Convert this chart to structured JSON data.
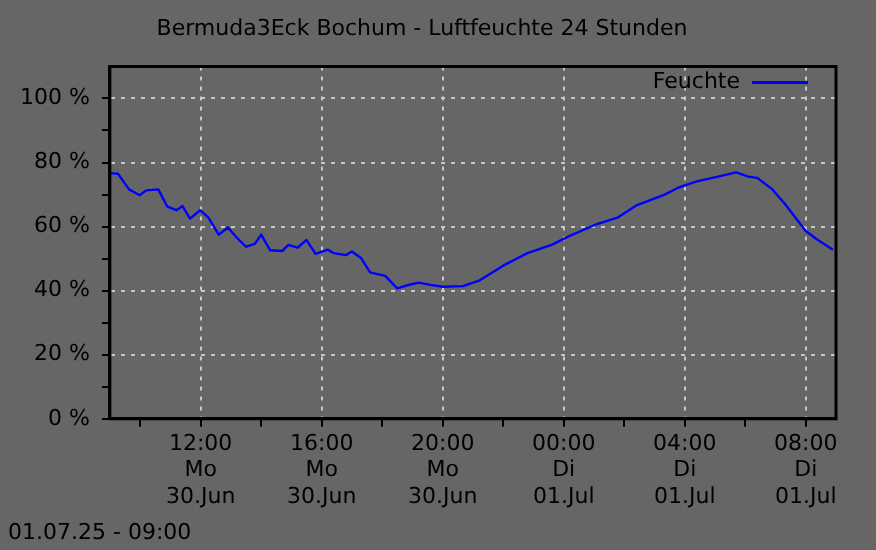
{
  "chart_data": {
    "type": "line",
    "title": "Bermuda3Eck Bochum - Luftfeuchte 24 Stunden",
    "annotations": [
      "01.07.25 - 09:00"
    ],
    "x": [
      "--06-30T09:00",
      "--06-30T09:16",
      "--06-30T09:38",
      "--06-30T09:59",
      "--06-30T10:12",
      "--06-30T10:36",
      "--06-30T10:54",
      "--06-30T11:12",
      "--06-30T11:24",
      "--06-30T11:39",
      "--06-30T11:59",
      "--06-30T12:15",
      "--06-30T12:36",
      "--06-30T12:54",
      "--06-30T13:12",
      "--06-30T13:30",
      "--06-30T13:48",
      "--06-30T14:00",
      "--06-30T14:18",
      "--06-30T14:42",
      "--06-30T14:54",
      "--06-30T15:12",
      "--06-30T15:30",
      "--06-30T15:48",
      "--06-30T16:12",
      "--06-30T16:24",
      "--06-30T16:48",
      "--06-30T17:00",
      "--06-30T17:18",
      "--06-30T17:36",
      "--06-30T18:06",
      "--06-30T18:30",
      "--06-30T18:48",
      "--06-30T19:12",
      "--06-30T19:36",
      "--06-30T20:00",
      "--06-30T20:40",
      "--06-30T21:12",
      "--06-30T22:00",
      "--06-30T22:48",
      "--06-30T23:36",
      "--07-01T00:12",
      "--07-01T01:06",
      "--07-01T01:48",
      "--07-01T02:24",
      "--07-01T03:18",
      "--07-01T03:48",
      "--07-01T04:24",
      "--07-01T05:06",
      "--07-01T05:42",
      "--07-01T06:06",
      "--07-01T06:24",
      "--07-01T06:54",
      "--07-01T07:18",
      "--07-01T08:00",
      "--07-01T08:24",
      "--07-01T08:54"
    ],
    "series": [
      {
        "name": "Feuchte",
        "color": "#0000ff",
        "values": [
          76.7,
          76.5,
          71.6,
          69.8,
          71.3,
          71.6,
          66.2,
          65.1,
          66.4,
          62.5,
          65.1,
          62.9,
          57.5,
          59.7,
          56.5,
          53.7,
          54.7,
          57.5,
          52.6,
          52.4,
          54.3,
          53.4,
          55.8,
          51.5,
          52.8,
          51.7,
          51.1,
          52.2,
          50.2,
          45.7,
          44.6,
          40.7,
          41.6,
          42.5,
          41.8,
          41.2,
          41.4,
          43.1,
          47.8,
          51.7,
          54.3,
          57.1,
          60.8,
          62.9,
          66.6,
          69.8,
          72.2,
          74.1,
          75.6,
          76.9,
          75.6,
          75.2,
          71.6,
          67.2,
          58.6,
          55.8,
          52.8
        ]
      }
    ],
    "xlim": [
      "--06-30T09:00",
      "--07-01T09:00"
    ],
    "xticks": [
      {
        "value": "--06-30T10:00",
        "label": null
      },
      {
        "value": "--06-30T12:00",
        "label": "12:00\nMo\n30.Jun"
      },
      {
        "value": "--06-30T14:00",
        "label": null
      },
      {
        "value": "--06-30T16:00",
        "label": "16:00\nMo\n30.Jun"
      },
      {
        "value": "--06-30T18:00",
        "label": null
      },
      {
        "value": "--06-30T20:00",
        "label": "20:00\nMo\n30.Jun"
      },
      {
        "value": "--06-30T22:00",
        "label": null
      },
      {
        "value": "--07-01T00:00",
        "label": "00:00\nDi\n01.Jul"
      },
      {
        "value": "--07-01T02:00",
        "label": null
      },
      {
        "value": "--07-01T04:00",
        "label": "04:00\nDi\n01.Jul"
      },
      {
        "value": "--07-01T06:00",
        "label": null
      },
      {
        "value": "--07-01T08:00",
        "label": "08:00\nDi\n01.Jul"
      }
    ],
    "ylim": [
      0,
      110
    ],
    "yticks": [
      {
        "value": 0,
        "label": "0 %"
      },
      {
        "value": 10,
        "label": null
      },
      {
        "value": 20,
        "label": "20 %"
      },
      {
        "value": 30,
        "label": null
      },
      {
        "value": 40,
        "label": "40 %"
      },
      {
        "value": 50,
        "label": null
      },
      {
        "value": 60,
        "label": "60 %"
      },
      {
        "value": 70,
        "label": null
      },
      {
        "value": 80,
        "label": "80 %"
      },
      {
        "value": 90,
        "label": null
      },
      {
        "value": 100,
        "label": "100 %"
      }
    ],
    "grid": true,
    "legend": "top right",
    "marker": "none",
    "line_style": "solid"
  }
}
